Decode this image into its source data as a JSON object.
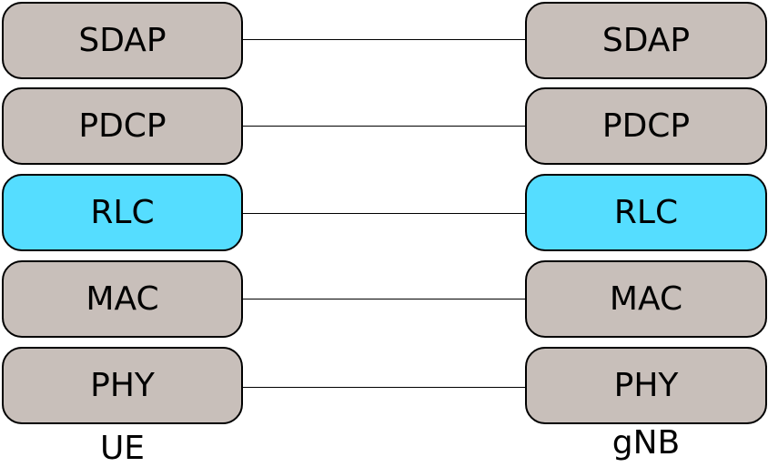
{
  "colors": {
    "default_layer": "#c8bfba",
    "highlight_layer": "#55ddff",
    "border": "#000000",
    "connector": "#000000"
  },
  "layers": [
    {
      "name": "SDAP",
      "highlighted": false
    },
    {
      "name": "PDCP",
      "highlighted": false
    },
    {
      "name": "RLC",
      "highlighted": true
    },
    {
      "name": "MAC",
      "highlighted": false
    },
    {
      "name": "PHY",
      "highlighted": false
    }
  ],
  "stacks": {
    "left": {
      "label": "UE"
    },
    "right": {
      "label": "gNB"
    }
  }
}
